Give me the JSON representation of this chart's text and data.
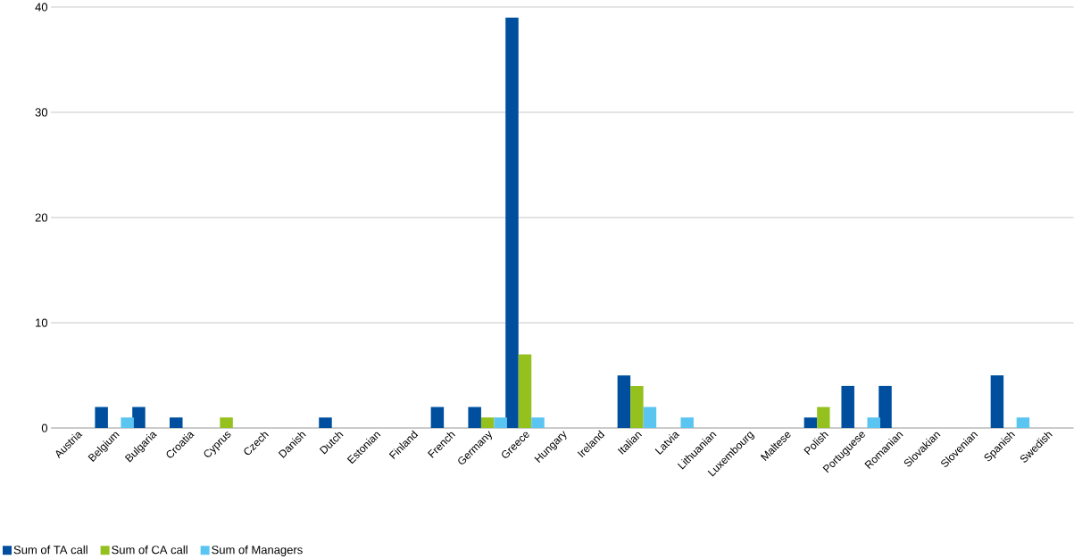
{
  "chart_data": {
    "type": "bar",
    "categories": [
      "Austria",
      "Belgium",
      "Bulgaria",
      "Croatia",
      "Cyprus",
      "Czech",
      "Danish",
      "Dutch",
      "Estonian",
      "Finland",
      "French",
      "Germany",
      "Greece",
      "Hungary",
      "Ireland",
      "Italian",
      "Latvia",
      "Lithuanian",
      "Luxembourg",
      "Maltese",
      "Polish",
      "Portuguese",
      "Romanian",
      "Slovakian",
      "Slovenian",
      "Spanish",
      "Swedish"
    ],
    "series": [
      {
        "name": "Sum of TA call",
        "color": "#004f9f",
        "values": [
          null,
          2,
          2,
          1,
          null,
          null,
          null,
          1,
          null,
          null,
          2,
          2,
          39,
          null,
          null,
          5,
          null,
          null,
          null,
          null,
          1,
          4,
          4,
          null,
          null,
          5,
          null
        ]
      },
      {
        "name": "Sum of CA call",
        "color": "#95c11f",
        "values": [
          null,
          null,
          null,
          null,
          1,
          null,
          null,
          null,
          null,
          null,
          null,
          1,
          7,
          null,
          null,
          4,
          null,
          null,
          null,
          null,
          2,
          null,
          null,
          null,
          null,
          null,
          null
        ]
      },
      {
        "name": "Sum of Managers",
        "color": "#5bc5f2",
        "values": [
          null,
          1,
          null,
          null,
          null,
          null,
          null,
          null,
          null,
          null,
          null,
          1,
          1,
          null,
          null,
          2,
          1,
          null,
          null,
          null,
          null,
          1,
          null,
          null,
          null,
          1,
          null
        ]
      }
    ],
    "ylim": [
      0,
      40
    ],
    "yticks": [
      0,
      10,
      20,
      30,
      40
    ],
    "grid": "y",
    "legend": "bottom left"
  }
}
